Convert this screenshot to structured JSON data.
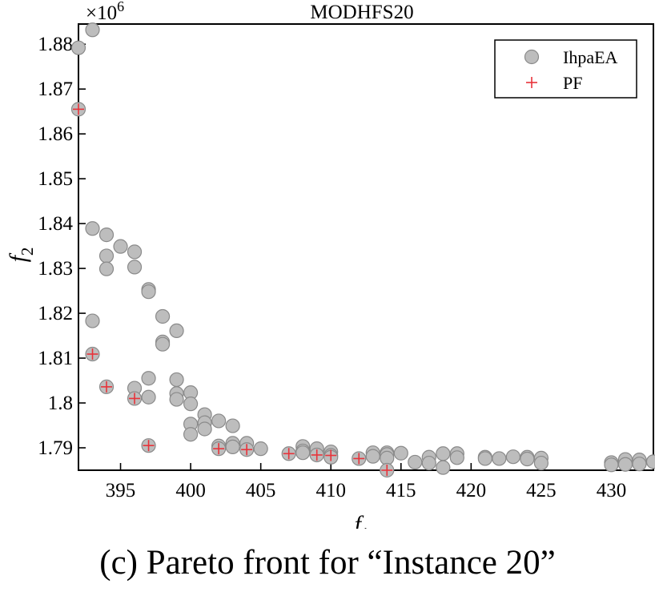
{
  "chart_data": {
    "type": "scatter",
    "title": "MODHFS20",
    "multiplier_label": "×10",
    "multiplier_exponent": "6",
    "xlabel": {
      "base": "f",
      "sub": "1"
    },
    "ylabel": {
      "base": "f",
      "sub": "2"
    },
    "xlim": [
      392,
      433
    ],
    "ylim": [
      1.785,
      1.8845
    ],
    "xticks": [
      395,
      400,
      405,
      410,
      415,
      420,
      425,
      430
    ],
    "yticks": [
      1.79,
      1.8,
      1.81,
      1.82,
      1.83,
      1.84,
      1.85,
      1.86,
      1.87,
      1.88
    ],
    "ytick_labels": [
      "1.79",
      "1.8",
      "1.81",
      "1.82",
      "1.83",
      "1.84",
      "1.85",
      "1.86",
      "1.87",
      "1.88"
    ],
    "legend_position": "top-right",
    "series": [
      {
        "name": "IhpaEA",
        "marker": "circle",
        "color": "#bdbdbd",
        "points": [
          [
            392,
            1.8792
          ],
          [
            393,
            1.8832
          ],
          [
            392,
            1.8655
          ],
          [
            393,
            1.8389
          ],
          [
            394,
            1.8375
          ],
          [
            395,
            1.8349
          ],
          [
            396,
            1.8337
          ],
          [
            394,
            1.8328
          ],
          [
            394,
            1.8299
          ],
          [
            396,
            1.8303
          ],
          [
            397,
            1.8253
          ],
          [
            397,
            1.8248
          ],
          [
            398,
            1.8193
          ],
          [
            393,
            1.8183
          ],
          [
            399,
            1.8161
          ],
          [
            398,
            1.8136
          ],
          [
            398,
            1.8131
          ],
          [
            393,
            1.8109
          ],
          [
            397,
            1.8055
          ],
          [
            399,
            1.8052
          ],
          [
            394,
            1.8036
          ],
          [
            396,
            1.8033
          ],
          [
            400,
            1.8023
          ],
          [
            399,
            1.8021
          ],
          [
            397,
            1.8013
          ],
          [
            396,
            1.801
          ],
          [
            399,
            1.8008
          ],
          [
            400,
            1.7998
          ],
          [
            401,
            1.7974
          ],
          [
            402,
            1.796
          ],
          [
            401,
            1.7956
          ],
          [
            400,
            1.7953
          ],
          [
            403,
            1.7949
          ],
          [
            401,
            1.7942
          ],
          [
            400,
            1.793
          ],
          [
            403,
            1.791
          ],
          [
            404,
            1.791
          ],
          [
            397,
            1.7905
          ],
          [
            402,
            1.7904
          ],
          [
            403,
            1.7902
          ],
          [
            402,
            1.7898
          ],
          [
            405,
            1.7898
          ],
          [
            404,
            1.7896
          ],
          [
            408,
            1.7903
          ],
          [
            409,
            1.7898
          ],
          [
            408,
            1.7893
          ],
          [
            410,
            1.7891
          ],
          [
            407,
            1.7887
          ],
          [
            408,
            1.7889
          ],
          [
            409,
            1.7884
          ],
          [
            410,
            1.7883
          ],
          [
            410,
            1.7879
          ],
          [
            413,
            1.7889
          ],
          [
            414,
            1.7889
          ],
          [
            415,
            1.7888
          ],
          [
            414,
            1.7885
          ],
          [
            413,
            1.7881
          ],
          [
            412,
            1.7876
          ],
          [
            414,
            1.7877
          ],
          [
            419,
            1.7887
          ],
          [
            418,
            1.7887
          ],
          [
            417,
            1.7879
          ],
          [
            419,
            1.7878
          ],
          [
            421,
            1.7879
          ],
          [
            421,
            1.7876
          ],
          [
            422,
            1.7876
          ],
          [
            423,
            1.788
          ],
          [
            424,
            1.7879
          ],
          [
            425,
            1.7877
          ],
          [
            424,
            1.7875
          ],
          [
            416,
            1.7868
          ],
          [
            417,
            1.7866
          ],
          [
            425,
            1.7866
          ],
          [
            418,
            1.7856
          ],
          [
            414,
            1.785
          ],
          [
            430,
            1.7867
          ],
          [
            431,
            1.7874
          ],
          [
            432,
            1.7873
          ],
          [
            433,
            1.7869
          ],
          [
            430,
            1.7862
          ],
          [
            431,
            1.7863
          ],
          [
            432,
            1.7864
          ]
        ]
      },
      {
        "name": "PF",
        "marker": "plus",
        "color": "#e8333a",
        "points": [
          [
            392,
            1.8655
          ],
          [
            393,
            1.8109
          ],
          [
            394,
            1.8036
          ],
          [
            396,
            1.801
          ],
          [
            397,
            1.7905
          ],
          [
            402,
            1.7898
          ],
          [
            404,
            1.7896
          ],
          [
            407,
            1.7887
          ],
          [
            409,
            1.7884
          ],
          [
            410,
            1.7883
          ],
          [
            412,
            1.7876
          ],
          [
            414,
            1.785
          ]
        ]
      }
    ]
  },
  "caption": "(c) Pareto front for “Instance 20”"
}
